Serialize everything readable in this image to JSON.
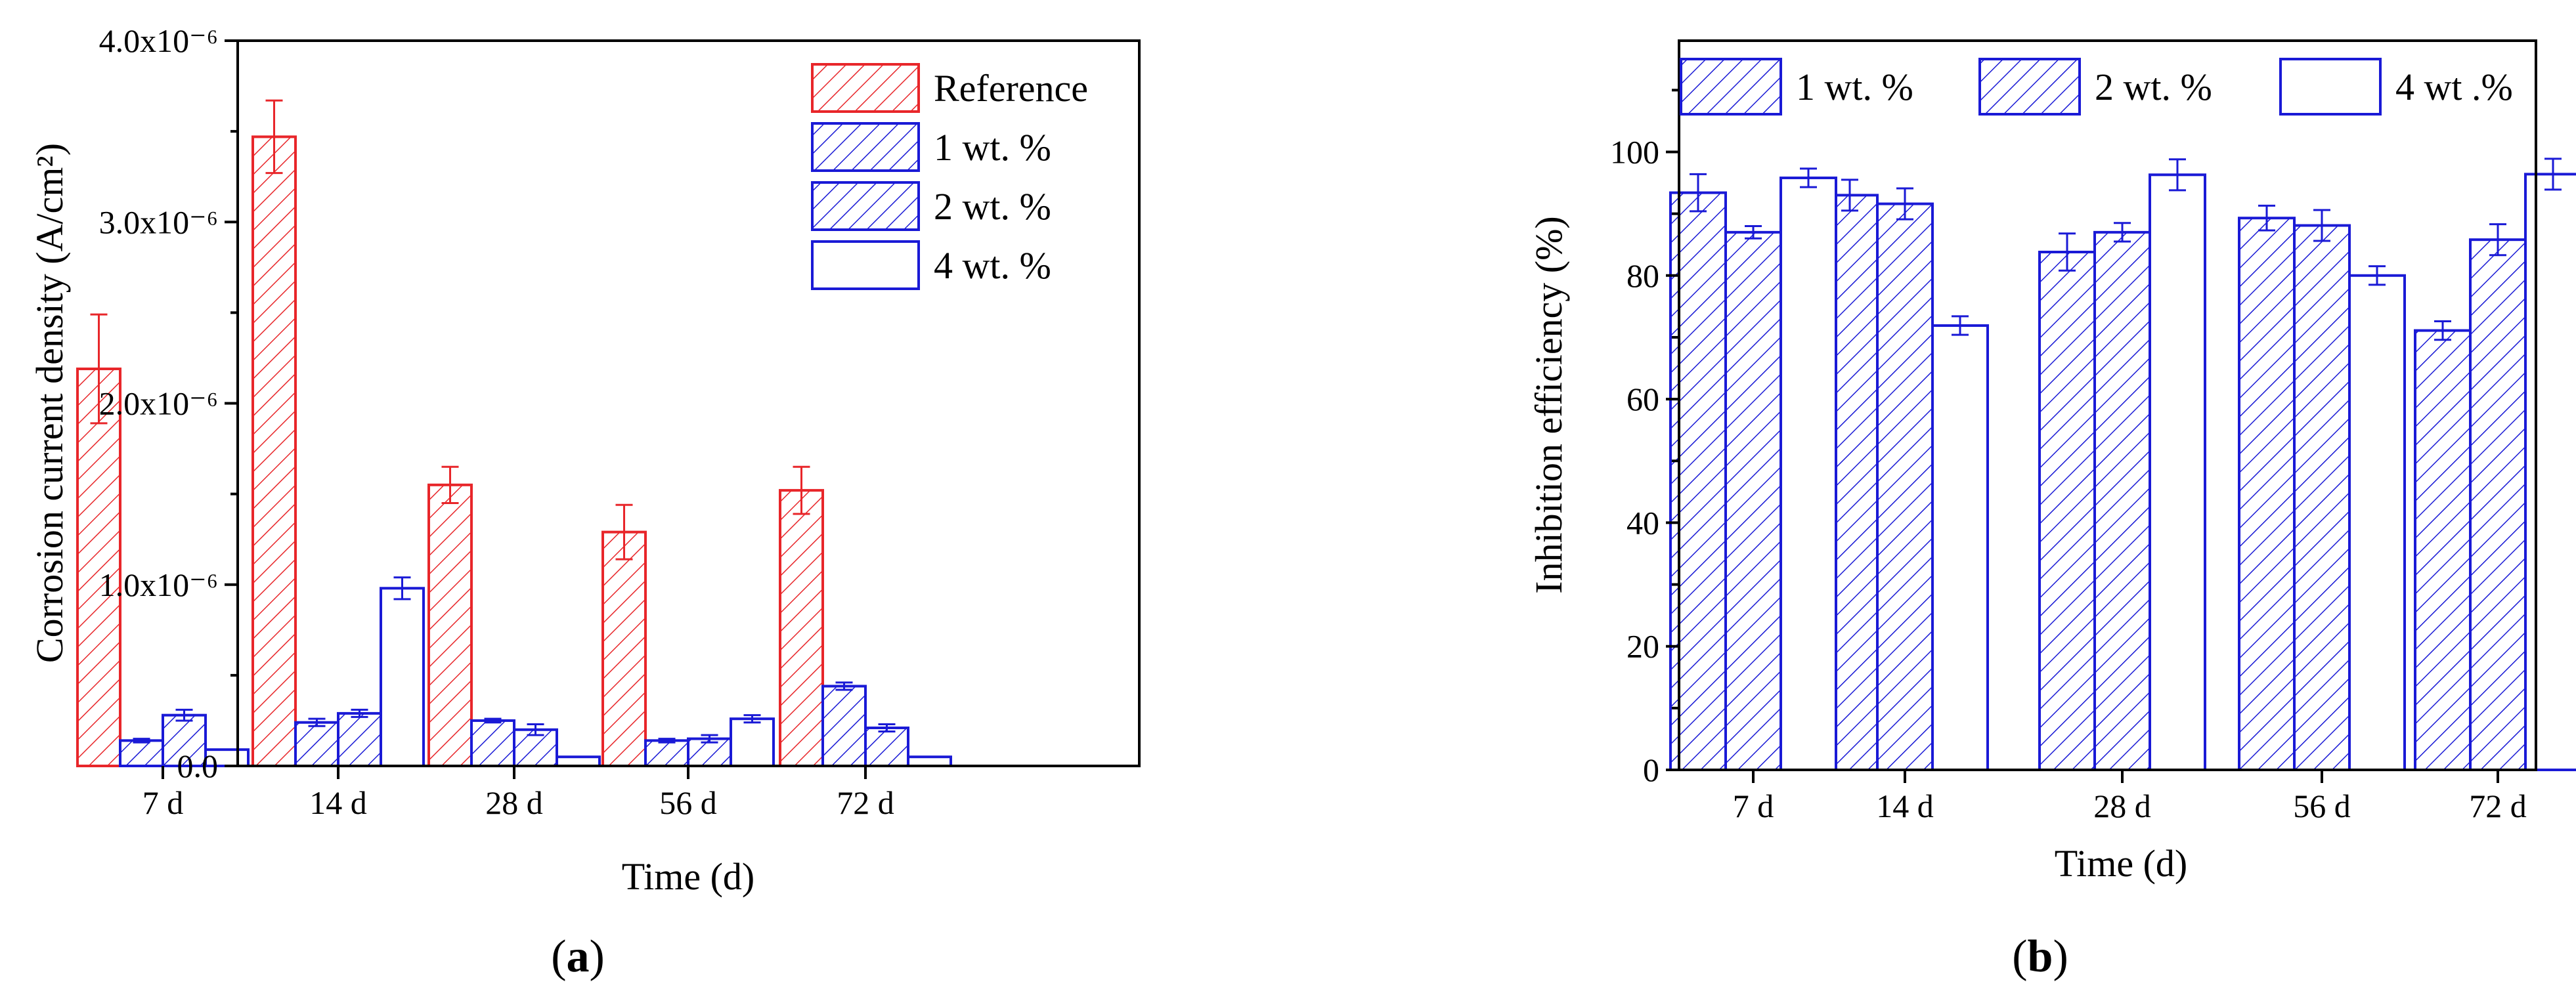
{
  "chart_data": [
    {
      "type": "bar",
      "panel_label": "a",
      "categories": [
        "7 d",
        "14 d",
        "28 d",
        "56 d",
        "72 d"
      ],
      "xlabel": "Time (d)",
      "ylabel": "Corrosion current density (A/cm²)",
      "ylim": [
        0,
        4e-06
      ],
      "yticks": [
        {
          "value": 0,
          "label": "0.0"
        },
        {
          "value": 1e-06,
          "label": "1.0x10⁻⁶"
        },
        {
          "value": 2e-06,
          "label": "2.0x10⁻⁶"
        },
        {
          "value": 3e-06,
          "label": "3.0x10⁻⁶"
        },
        {
          "value": 4e-06,
          "label": "4.0x10⁻⁶"
        }
      ],
      "legend_position": "top-right",
      "series": [
        {
          "name": "Reference",
          "color": "#e8262a",
          "pattern": "hatch",
          "values": [
            2.19e-06,
            3.47e-06,
            1.55e-06,
            1.29e-06,
            1.52e-06
          ],
          "errors": [
            3e-07,
            2e-07,
            1e-07,
            1.5e-07,
            1.3e-07
          ]
        },
        {
          "name": "1 wt. %",
          "color": "#1a1ad6",
          "pattern": "hatch",
          "values": [
            1.4e-07,
            2.4e-07,
            2.5e-07,
            1.4e-07,
            4.4e-07
          ],
          "errors": [
            1e-08,
            2e-08,
            1e-08,
            1e-08,
            2e-08
          ]
        },
        {
          "name": "2 wt. %",
          "color": "#1a1ad6",
          "pattern": "hatch",
          "values": [
            2.8e-07,
            2.9e-07,
            2e-07,
            1.5e-07,
            2.1e-07
          ],
          "errors": [
            3e-08,
            2e-08,
            3e-08,
            2e-08,
            2e-08
          ]
        },
        {
          "name": "4 wt. %",
          "color": "#1a1ad6",
          "pattern": "none",
          "values": [
            9e-08,
            9.8e-07,
            5e-08,
            2.6e-07,
            5e-08
          ],
          "errors": [
            0,
            6e-08,
            0,
            2e-08,
            0
          ]
        }
      ]
    },
    {
      "type": "bar",
      "panel_label": "b",
      "categories": [
        "7 d",
        "14 d",
        "28 d",
        "56 d",
        "72 d"
      ],
      "xlabel": "Time (d)",
      "ylabel": "Inhibition efficiency (%)",
      "ylim": [
        0,
        118
      ],
      "yticks": [
        {
          "value": 0,
          "label": "0"
        },
        {
          "value": 20,
          "label": "20"
        },
        {
          "value": 40,
          "label": "40"
        },
        {
          "value": 60,
          "label": "60"
        },
        {
          "value": 80,
          "label": "80"
        },
        {
          "value": 100,
          "label": "100"
        }
      ],
      "legend_position": "top",
      "series": [
        {
          "name": "1 wt. %",
          "color": "#1a1ad6",
          "pattern": "hatch",
          "values": [
            93.4,
            93.0,
            83.8,
            89.3,
            71.1
          ],
          "errors": [
            3.0,
            2.5,
            3.0,
            2.0,
            1.5
          ]
        },
        {
          "name": "2 wt. %",
          "color": "#1a1ad6",
          "pattern": "hatch",
          "values": [
            87.0,
            91.6,
            87.0,
            88.1,
            85.8
          ],
          "errors": [
            1.0,
            2.5,
            1.5,
            2.5,
            2.5
          ]
        },
        {
          "name": "4 wt .%",
          "color": "#1a1ad6",
          "pattern": "none",
          "values": [
            95.8,
            71.9,
            96.3,
            80.0,
            96.4
          ],
          "errors": [
            1.5,
            1.5,
            2.5,
            1.5,
            2.5
          ]
        }
      ]
    }
  ]
}
